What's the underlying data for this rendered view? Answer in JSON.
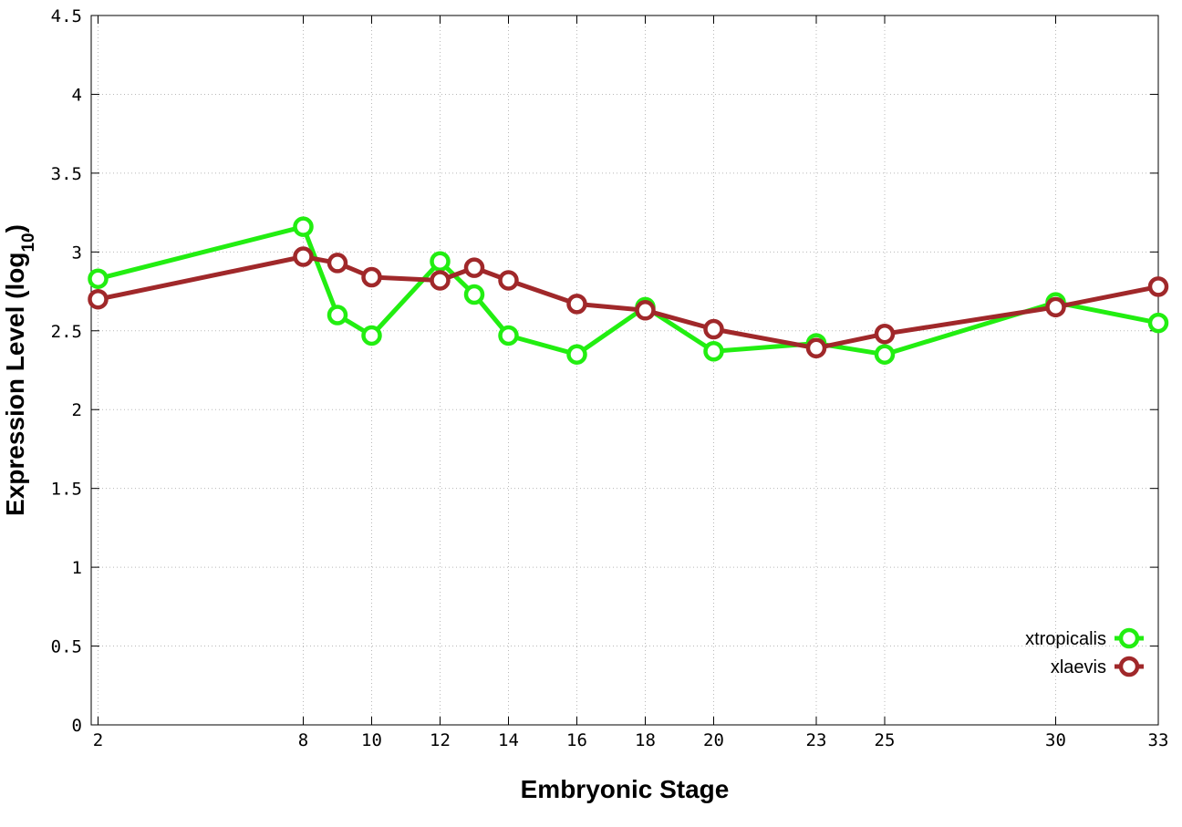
{
  "chart_data": {
    "type": "line",
    "xlabel": "Embryonic Stage",
    "ylabel_main": "Expression Level (log",
    "ylabel_sub": "10",
    "ylabel_close": ")",
    "xlim": [
      1.8,
      33
    ],
    "ylim": [
      0,
      4.5
    ],
    "grid": true,
    "legend_position": "bottom-right",
    "xticks": [
      2,
      8,
      10,
      12,
      14,
      16,
      18,
      20,
      23,
      25,
      30,
      33
    ],
    "yticks": [
      0,
      0.5,
      1,
      1.5,
      2,
      2.5,
      3,
      3.5,
      4,
      4.5
    ],
    "ytick_labels": [
      "0",
      "0.5",
      "1",
      "1.5",
      "2",
      "2.5",
      "3",
      "3.5",
      "4",
      "4.5"
    ],
    "x": [
      2,
      8,
      9,
      10,
      12,
      13,
      14,
      16,
      18,
      20,
      23,
      25,
      30,
      33
    ],
    "series": [
      {
        "name": "xtropicalis",
        "color": "#22ee11",
        "values": [
          2.83,
          3.16,
          2.6,
          2.47,
          2.94,
          2.73,
          2.47,
          2.35,
          2.65,
          2.37,
          2.42,
          2.35,
          2.68,
          2.55
        ]
      },
      {
        "name": "xlaevis",
        "color": "#a0282a",
        "values": [
          2.7,
          2.97,
          2.93,
          2.84,
          2.82,
          2.9,
          2.82,
          2.67,
          2.63,
          2.51,
          2.39,
          2.48,
          2.65,
          2.78
        ]
      }
    ]
  }
}
